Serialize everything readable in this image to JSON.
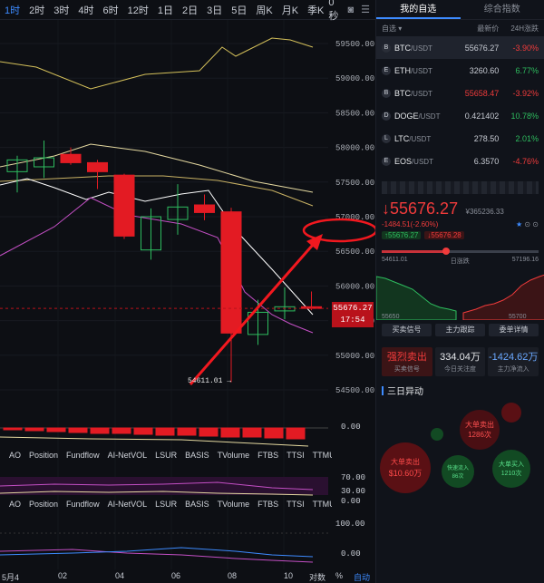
{
  "timeframes": [
    "1时",
    "2时",
    "3时",
    "4时",
    "6时",
    "12时",
    "1日",
    "2日",
    "3日",
    "5日",
    "周K",
    "月K",
    "季K"
  ],
  "active_timeframe_index": 0,
  "countdown": "0秒",
  "price_axis": [
    "59500.00",
    "59000.00",
    "58500.00",
    "58000.00",
    "57500.00",
    "57000.00",
    "56500.00",
    "56000.00",
    "55500.00",
    "55000.00",
    "54500.00"
  ],
  "current_price_box": {
    "price": "55676.27",
    "time": "17:54"
  },
  "low_label": "54611.01 →",
  "indicator_tabs": [
    "AO",
    "Position",
    "Fundflow",
    "AI-NetVOL",
    "LSUR",
    "BASIS",
    "TVolume",
    "FTBS",
    "TTSI",
    "TTMU"
  ],
  "indicator_axis_1": [
    "0.00"
  ],
  "indicator_axis_2": [
    "70.00",
    "30.00",
    "0.00"
  ],
  "indicator_axis_3": [
    "100.00",
    "0.00"
  ],
  "x_axis": [
    "5月4",
    "02",
    "04",
    "06",
    "08",
    "10"
  ],
  "bottom_tools": {
    "settings": "对数",
    "percent": "%",
    "auto": "自动"
  },
  "candles": [
    {
      "o": 57650,
      "h": 57880,
      "l": 57350,
      "c": 57820
    },
    {
      "o": 57720,
      "h": 58100,
      "l": 57560,
      "c": 57850
    },
    {
      "o": 57900,
      "h": 58000,
      "l": 57750,
      "c": 57780
    },
    {
      "o": 57780,
      "h": 57820,
      "l": 57400,
      "c": 57650
    },
    {
      "o": 57600,
      "h": 57620,
      "l": 56680,
      "c": 56720
    },
    {
      "o": 56520,
      "h": 57120,
      "l": 56380,
      "c": 57000
    },
    {
      "o": 56960,
      "h": 57470,
      "l": 56740,
      "c": 57140
    },
    {
      "o": 57170,
      "h": 57320,
      "l": 56950,
      "c": 57060
    },
    {
      "o": 57070,
      "h": 57130,
      "l": 54611.01,
      "c": 55320
    },
    {
      "o": 55300,
      "h": 55800,
      "l": 55150,
      "c": 55620
    },
    {
      "o": 55640,
      "h": 55980,
      "l": 55520,
      "c": 55700
    },
    {
      "o": 55700,
      "h": 55920,
      "l": 55650,
      "c": 55676.27
    }
  ],
  "side": {
    "tabs": [
      "我的自选",
      "综合指数"
    ],
    "watch_header": {
      "group": "自选",
      "price": "最新价",
      "change": "24H涨跌"
    },
    "watchlist": [
      {
        "icon": "B",
        "sym": "BTC",
        "quote": "/USDT",
        "price": "55676.27",
        "change": "-3.90%",
        "dir": "down",
        "price_dir": "neutral"
      },
      {
        "icon": "E",
        "sym": "ETH",
        "quote": "/USDT",
        "price": "3260.60",
        "change": "6.77%",
        "dir": "up",
        "price_dir": "neutral"
      },
      {
        "icon": "B",
        "sym": "BTC",
        "quote": "/USDT",
        "price": "55658.47",
        "change": "-3.92%",
        "dir": "down",
        "price_dir": "down"
      },
      {
        "icon": "D",
        "sym": "DOGE",
        "quote": "/USDT",
        "price": "0.421402",
        "change": "10.78%",
        "dir": "up",
        "price_dir": "neutral"
      },
      {
        "icon": "L",
        "sym": "LTC",
        "quote": "/USDT",
        "price": "278.50",
        "change": "2.01%",
        "dir": "up",
        "price_dir": "neutral"
      },
      {
        "icon": "E",
        "sym": "EOS",
        "quote": "/USDT",
        "price": "6.3570",
        "change": "-4.76%",
        "dir": "down",
        "price_dir": "neutral"
      }
    ],
    "ticker": {
      "price": "↓55676.27",
      "cny": "¥365236.33",
      "change": "-1484.51(-2.60%)",
      "bid_pill": "↑55676.27",
      "ask_pill": "↓55676.28",
      "range_low": "54611.01",
      "range_mid": "日涨跌",
      "range_high": "57196.16",
      "range_fraction": 0.41,
      "depth_left": "55650",
      "depth_right": "55700"
    },
    "buttons": [
      "买卖信号",
      "主力跟踪",
      "委单详情"
    ],
    "flow": [
      {
        "value": "强烈卖出",
        "label": "买卖信号",
        "style": "red"
      },
      {
        "value": "334.04万",
        "label": "今日关注度",
        "style": "w"
      },
      {
        "value": "-1424.62万",
        "label": "主力净流入",
        "style": "b"
      }
    ],
    "three_day_title": "三日异动",
    "bubbles": [
      {
        "title": "大单卖出",
        "num": "$10.60万",
        "kind": "sell-big"
      },
      {
        "title": "快速流入",
        "num": "86次",
        "kind": "buy-small"
      },
      {
        "title": "大单卖出",
        "num": "1286次",
        "kind": "sell-mid"
      },
      {
        "title": "大单买入",
        "num": "1210次",
        "kind": "buy-mid"
      }
    ]
  }
}
